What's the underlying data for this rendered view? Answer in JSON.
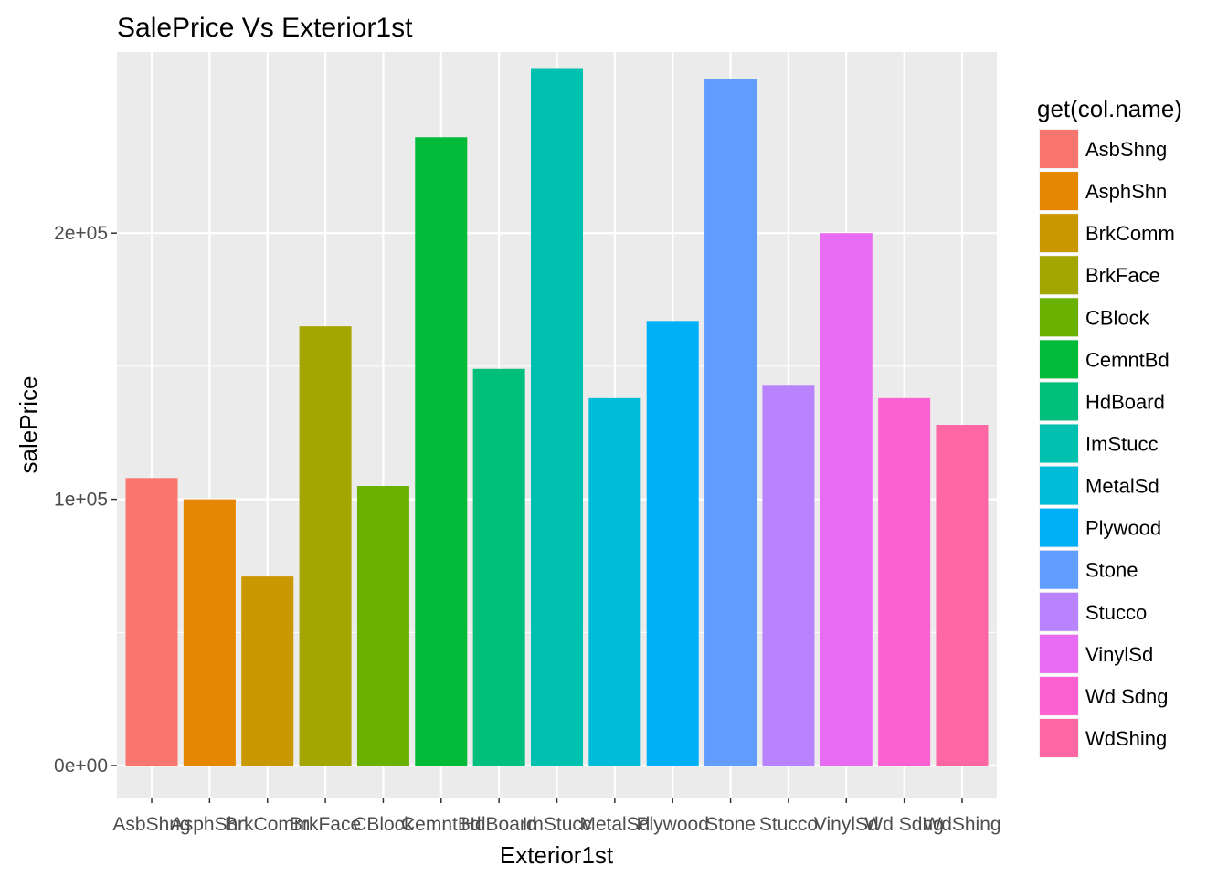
{
  "chart_data": {
    "type": "bar",
    "title": "SalePrice Vs Exterior1st",
    "xlabel": "Exterior1st",
    "ylabel": "salePrice",
    "ylim": [
      -12000,
      268000
    ],
    "y_ticks": [
      0,
      100000,
      200000
    ],
    "y_tick_labels": [
      "0e+00",
      "1e+05",
      "2e+05"
    ],
    "grid": true,
    "legend_position": "right",
    "legend_title": "get(col.name)",
    "categories": [
      "AsbShng",
      "AsphShn",
      "BrkComm",
      "BrkFace",
      "CBlock",
      "CemntBd",
      "HdBoard",
      "ImStucc",
      "MetalSd",
      "Plywood",
      "Stone",
      "Stucco",
      "VinylSd",
      "Wd Sdng",
      "WdShing"
    ],
    "values": [
      108000,
      100000,
      71000,
      165000,
      105000,
      236000,
      149000,
      262000,
      138000,
      167000,
      258000,
      143000,
      200000,
      138000,
      128000
    ],
    "colors": [
      "#F8766D",
      "#E58700",
      "#C99800",
      "#A3A500",
      "#6BB100",
      "#00BA38",
      "#00BF7D",
      "#00C0AF",
      "#00BCD8",
      "#00B0F6",
      "#619CFF",
      "#B983FF",
      "#E76BF3",
      "#FD61D1",
      "#FF67A4"
    ]
  }
}
